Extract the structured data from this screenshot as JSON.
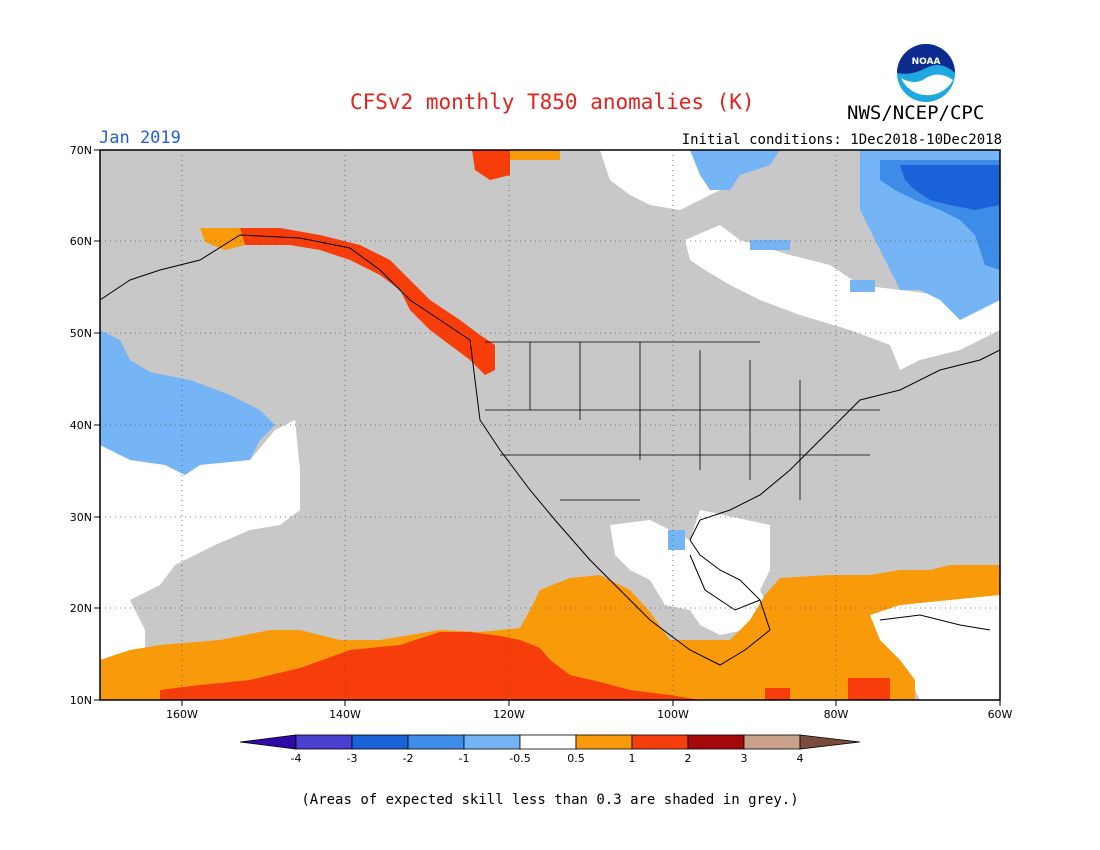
{
  "header": {
    "title": "CFSv2 monthly T850 anomalies (K)",
    "org": "NWS/NCEP/CPC",
    "month": "Jan 2019",
    "initial_conditions": "Initial conditions: 1Dec2018-10Dec2018",
    "logo_text": "NOAA"
  },
  "map": {
    "lat_labels": [
      "70N",
      "60N",
      "50N",
      "40N",
      "30N",
      "20N",
      "10N"
    ],
    "lon_labels": [
      "160W",
      "140W",
      "120W",
      "100W",
      "80W",
      "60W"
    ],
    "colors": {
      "grey": "#c8c8c8",
      "white": "#ffffff",
      "orange": "#f99a0b",
      "red_orange": "#f73d0a",
      "light_blue": "#75b4f5",
      "mid_blue": "#3d8de8",
      "blue": "#1a62d8"
    }
  },
  "colorbar": {
    "labels": [
      "-4",
      "-3",
      "-2",
      "-1",
      "-0.5",
      "0.5",
      "1",
      "2",
      "3",
      "4"
    ],
    "colors": [
      "#2e0ba8",
      "#4a3fcf",
      "#1a62d8",
      "#3d8de8",
      "#75b4f5",
      "#ffffff",
      "#f99a0b",
      "#f73d0a",
      "#a50a0a",
      "#c9a08a",
      "#7a4a3a"
    ]
  },
  "footnote": "(Areas of expected skill less than 0.3 are shaded in grey.)"
}
